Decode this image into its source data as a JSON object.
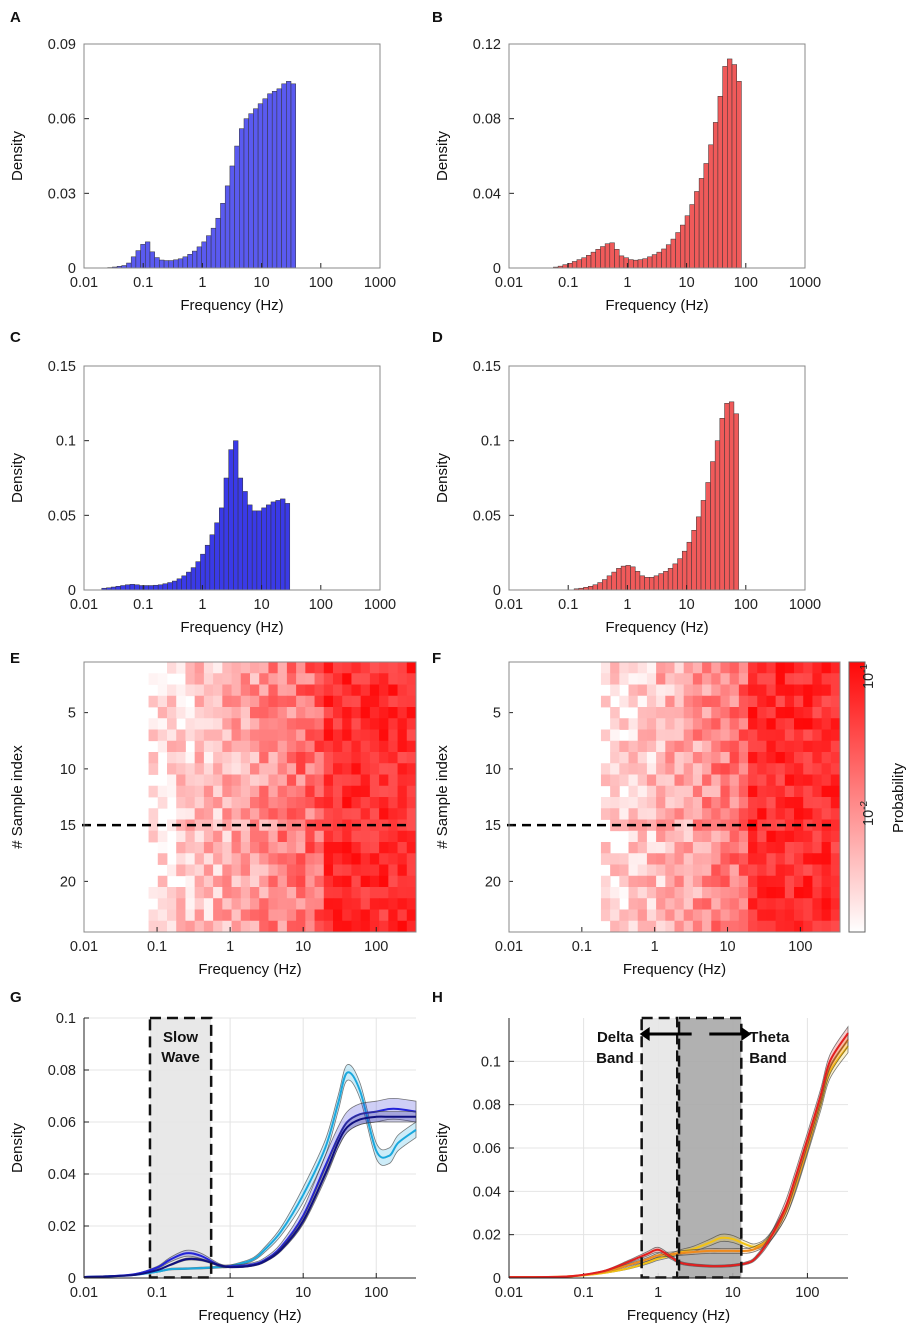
{
  "chart_data": [
    {
      "panel": "A",
      "type": "bar",
      "color": "#5a5af0",
      "xscale": "log",
      "xlim": [
        0.01,
        1000
      ],
      "ylim": [
        0,
        0.09
      ],
      "xticks": [
        "0.01",
        "0.1",
        "1",
        "10",
        "100",
        "1000"
      ],
      "yticks": [
        "0",
        "0.03",
        "0.06",
        "0.09"
      ],
      "xlabel": "Frequency (Hz)",
      "ylabel": "Density",
      "bin_left_log10": -1.6,
      "bin_width_log10": 0.0794,
      "values": [
        0.0002,
        0.0004,
        0.0007,
        0.001,
        0.002,
        0.0045,
        0.007,
        0.0095,
        0.0105,
        0.0065,
        0.0042,
        0.0032,
        0.003,
        0.003,
        0.0033,
        0.0037,
        0.0045,
        0.0055,
        0.0068,
        0.0085,
        0.0105,
        0.013,
        0.016,
        0.02,
        0.026,
        0.033,
        0.041,
        0.049,
        0.056,
        0.06,
        0.062,
        0.064,
        0.066,
        0.068,
        0.07,
        0.071,
        0.072,
        0.074,
        0.075,
        0.074
      ]
    },
    {
      "panel": "B",
      "type": "bar",
      "color": "#f05a5a",
      "xscale": "log",
      "xlim": [
        0.01,
        1000
      ],
      "ylim": [
        0,
        0.12
      ],
      "xticks": [
        "0.01",
        "0.1",
        "1",
        "10",
        "100",
        "1000"
      ],
      "yticks": [
        "0",
        "0.04",
        "0.08",
        "0.12"
      ],
      "xlabel": "Frequency (Hz)",
      "ylabel": "Density",
      "bin_left_log10": -1.25,
      "bin_width_log10": 0.0794,
      "values": [
        0.0005,
        0.001,
        0.0018,
        0.0025,
        0.0035,
        0.0045,
        0.0055,
        0.0068,
        0.0085,
        0.01,
        0.0115,
        0.013,
        0.0135,
        0.01,
        0.0065,
        0.0055,
        0.0045,
        0.0042,
        0.0045,
        0.005,
        0.006,
        0.0072,
        0.0085,
        0.0102,
        0.0125,
        0.0155,
        0.019,
        0.023,
        0.028,
        0.034,
        0.041,
        0.048,
        0.056,
        0.066,
        0.078,
        0.092,
        0.108,
        0.112,
        0.109,
        0.1
      ]
    },
    {
      "panel": "C",
      "type": "bar",
      "color": "#3a3ae8",
      "xscale": "log",
      "xlim": [
        0.01,
        1000
      ],
      "ylim": [
        0,
        0.15
      ],
      "xticks": [
        "0.01",
        "0.1",
        "1",
        "10",
        "100",
        "1000"
      ],
      "yticks": [
        "0",
        "0.05",
        "0.1",
        "0.15"
      ],
      "xlabel": "Frequency (Hz)",
      "ylabel": "Density",
      "bin_left_log10": -1.7,
      "bin_width_log10": 0.0794,
      "values": [
        0.0012,
        0.0015,
        0.002,
        0.0025,
        0.003,
        0.0035,
        0.0038,
        0.0035,
        0.003,
        0.003,
        0.003,
        0.0032,
        0.0035,
        0.0042,
        0.005,
        0.006,
        0.0075,
        0.0095,
        0.012,
        0.015,
        0.019,
        0.024,
        0.03,
        0.037,
        0.045,
        0.055,
        0.075,
        0.094,
        0.1,
        0.075,
        0.066,
        0.057,
        0.053,
        0.053,
        0.055,
        0.057,
        0.059,
        0.06,
        0.061,
        0.058
      ]
    },
    {
      "panel": "D",
      "type": "bar",
      "color": "#f05a5a",
      "xscale": "log",
      "xlim": [
        0.01,
        1000
      ],
      "ylim": [
        0,
        0.15
      ],
      "xticks": [
        "0.01",
        "0.1",
        "1",
        "10",
        "100",
        "1000"
      ],
      "yticks": [
        "0",
        "0.05",
        "0.1",
        "0.15"
      ],
      "xlabel": "Frequency (Hz)",
      "ylabel": "Density",
      "bin_left_log10": -0.9,
      "bin_width_log10": 0.0794,
      "values": [
        0.0008,
        0.0012,
        0.0018,
        0.0025,
        0.0035,
        0.005,
        0.007,
        0.0095,
        0.012,
        0.0145,
        0.016,
        0.0165,
        0.0155,
        0.0125,
        0.0095,
        0.0085,
        0.0085,
        0.0095,
        0.011,
        0.0125,
        0.0145,
        0.0175,
        0.021,
        0.026,
        0.032,
        0.04,
        0.049,
        0.06,
        0.072,
        0.086,
        0.1,
        0.115,
        0.125,
        0.126,
        0.118
      ]
    },
    {
      "panel": "E",
      "type": "heatmap",
      "colormap": "white-red",
      "xscale": "log",
      "xlim": [
        0.01,
        350
      ],
      "xticks": [
        "0.01",
        "0.1",
        "1",
        "10",
        "100"
      ],
      "yticks": [
        "5",
        "10",
        "15",
        "20"
      ],
      "xlabel": "Frequency (Hz)",
      "ylabel": "# Sample index",
      "rows": 24,
      "onset_log10": -1.1,
      "separator_row": 14.5
    },
    {
      "panel": "F",
      "type": "heatmap",
      "colormap": "white-red",
      "xscale": "log",
      "xlim": [
        0.01,
        350
      ],
      "xticks": [
        "0.01",
        "0.1",
        "1",
        "10",
        "100"
      ],
      "yticks": [
        "5",
        "10",
        "15",
        "20"
      ],
      "xlabel": "Frequency (Hz)",
      "ylabel": "# Sample index",
      "rows": 24,
      "onset_log10": -0.75,
      "separator_row": 14.5,
      "colorbar": {
        "label": "Probability",
        "top_label": "10",
        "top_exp": "-1",
        "mid_label": "10",
        "mid_exp": "-2"
      }
    },
    {
      "panel": "G",
      "type": "line",
      "xscale": "log",
      "xlim": [
        0.01,
        350
      ],
      "ylim": [
        0,
        0.1
      ],
      "xticks": [
        "0.01",
        "0.1",
        "1",
        "10",
        "100"
      ],
      "yticks": [
        "0",
        "0.02",
        "0.04",
        "0.06",
        "0.08",
        "0.1"
      ],
      "xlabel": "Frequency (Hz)",
      "ylabel": "Density",
      "grid": true,
      "x": [
        0.01,
        0.02,
        0.05,
        0.1,
        0.15,
        0.25,
        0.4,
        0.7,
        1,
        2,
        3,
        5,
        10,
        20,
        30,
        40,
        60,
        100,
        150,
        200,
        350
      ],
      "band": {
        "label_line1": "Slow",
        "label_line2": "Wave",
        "x_range": [
          0.08,
          0.55
        ]
      },
      "series": [
        {
          "name": "light blue",
          "color": "#1ba8dd",
          "width": 0.003,
          "values": [
            0.0004,
            0.0006,
            0.0012,
            0.0024,
            0.0034,
            0.0036,
            0.0038,
            0.0042,
            0.0046,
            0.007,
            0.011,
            0.018,
            0.032,
            0.05,
            0.067,
            0.079,
            0.072,
            0.049,
            0.047,
            0.052,
            0.057
          ]
        },
        {
          "name": "blue",
          "color": "#2323d8",
          "width": 0.004,
          "values": [
            0.0004,
            0.0006,
            0.0015,
            0.004,
            0.007,
            0.0095,
            0.0085,
            0.005,
            0.0045,
            0.0052,
            0.007,
            0.012,
            0.024,
            0.043,
            0.054,
            0.06,
            0.063,
            0.064,
            0.065,
            0.065,
            0.064
          ]
        },
        {
          "name": "navy",
          "color": "#101080",
          "width": 0.002,
          "values": [
            0.0004,
            0.0006,
            0.0012,
            0.003,
            0.005,
            0.0072,
            0.007,
            0.005,
            0.0042,
            0.0048,
            0.0065,
            0.011,
            0.022,
            0.04,
            0.052,
            0.058,
            0.061,
            0.062,
            0.062,
            0.062,
            0.062
          ]
        }
      ]
    },
    {
      "panel": "H",
      "type": "line",
      "xscale": "log",
      "xlim": [
        0.01,
        350
      ],
      "ylim": [
        0,
        0.12
      ],
      "xticks": [
        "0.01",
        "0.1",
        "1",
        "10",
        "100"
      ],
      "yticks": [
        "0",
        "0.02",
        "0.04",
        "0.06",
        "0.08",
        "0.1"
      ],
      "xlabel": "Frequency (Hz)",
      "ylabel": "Density",
      "grid": true,
      "x": [
        0.01,
        0.05,
        0.1,
        0.2,
        0.4,
        0.7,
        1,
        1.5,
        2,
        3,
        5,
        7,
        10,
        15,
        20,
        30,
        50,
        70,
        100,
        150,
        200,
        350
      ],
      "bands": [
        {
          "label_line1": "Delta",
          "label_line2": "Band",
          "x_range": [
            0.6,
            1.8
          ],
          "shade": "light",
          "arrow": "left"
        },
        {
          "label_line1": "Theta",
          "label_line2": "Band",
          "x_range": [
            1.9,
            13
          ],
          "shade": "dark",
          "arrow": "right"
        }
      ],
      "series": [
        {
          "name": "yellow",
          "color": "#f2c314",
          "width": 0.003,
          "values": [
            0.0004,
            0.0006,
            0.0012,
            0.0025,
            0.0045,
            0.007,
            0.009,
            0.0105,
            0.012,
            0.0135,
            0.0165,
            0.0185,
            0.018,
            0.0155,
            0.0145,
            0.018,
            0.03,
            0.043,
            0.06,
            0.08,
            0.095,
            0.107
          ]
        },
        {
          "name": "orange",
          "color": "#f08a1c",
          "width": 0.003,
          "values": [
            0.0004,
            0.0006,
            0.0014,
            0.003,
            0.006,
            0.0085,
            0.0105,
            0.011,
            0.0115,
            0.012,
            0.0125,
            0.0125,
            0.0125,
            0.0125,
            0.0135,
            0.0175,
            0.03,
            0.044,
            0.061,
            0.082,
            0.097,
            0.11
          ]
        },
        {
          "name": "red",
          "color": "#e21f1f",
          "width": 0.003,
          "values": [
            0.0004,
            0.0006,
            0.0015,
            0.0035,
            0.0075,
            0.011,
            0.013,
            0.0095,
            0.007,
            0.006,
            0.0055,
            0.0055,
            0.0058,
            0.0068,
            0.009,
            0.017,
            0.032,
            0.047,
            0.064,
            0.084,
            0.1,
            0.113
          ]
        }
      ]
    }
  ],
  "labels": {
    "panels": [
      "A",
      "B",
      "C",
      "D",
      "E",
      "F",
      "G",
      "H"
    ]
  }
}
